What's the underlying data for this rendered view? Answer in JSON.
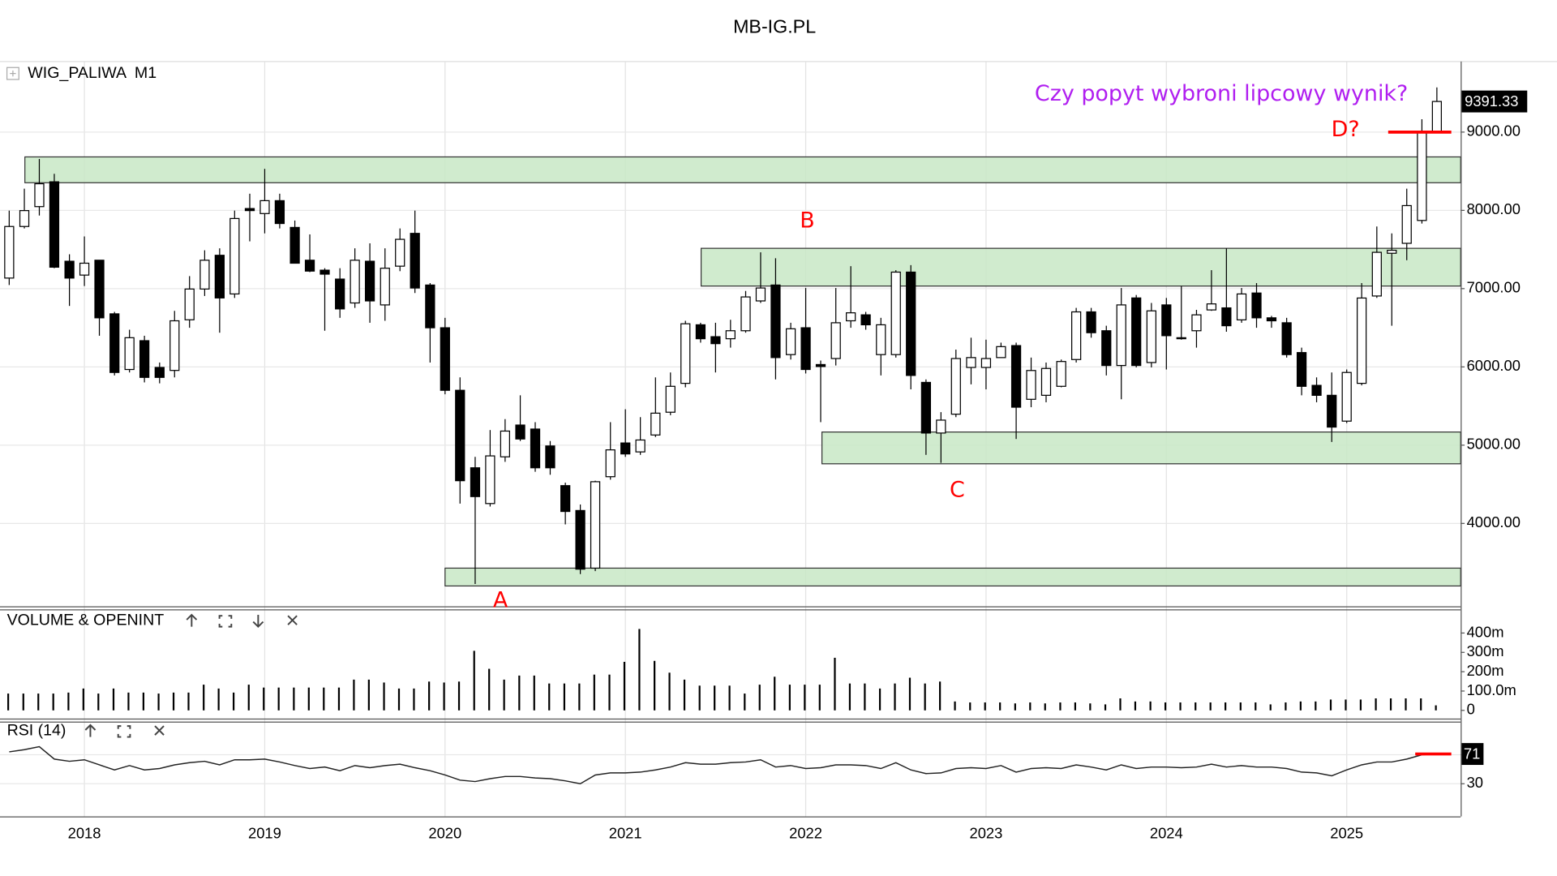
{
  "page_title": "MB-IG.PL",
  "chart_data": [
    {
      "type": "candlestick",
      "title": "WIG_PALIWA  M1",
      "x": [
        2017.583,
        2017.667,
        2017.75,
        2017.833,
        2017.917,
        2018,
        2018.083,
        2018.167,
        2018.25,
        2018.333,
        2018.417,
        2018.5,
        2018.583,
        2018.667,
        2018.75,
        2018.833,
        2018.917,
        2019,
        2019.083,
        2019.167,
        2019.25,
        2019.333,
        2019.417,
        2019.5,
        2019.583,
        2019.667,
        2019.75,
        2019.833,
        2019.917,
        2020,
        2020.083,
        2020.167,
        2020.25,
        2020.333,
        2020.417,
        2020.5,
        2020.583,
        2020.667,
        2020.75,
        2020.833,
        2020.917,
        2021,
        2021.083,
        2021.167,
        2021.25,
        2021.333,
        2021.417,
        2021.5,
        2021.583,
        2021.667,
        2021.75,
        2021.833,
        2021.917,
        2022,
        2022.083,
        2022.167,
        2022.25,
        2022.333,
        2022.417,
        2022.5,
        2022.583,
        2022.667,
        2022.75,
        2022.833,
        2022.917,
        2023,
        2023.083,
        2023.167,
        2023.25,
        2023.333,
        2023.417,
        2023.5,
        2023.583,
        2023.667,
        2023.75,
        2023.833,
        2023.917,
        2024,
        2024.083,
        2024.167,
        2024.25,
        2024.333,
        2024.417,
        2024.5,
        2024.583,
        2024.667,
        2024.75,
        2024.833,
        2024.917,
        2025,
        2025.083,
        2025.167,
        2025.25,
        2025.333,
        2025.417,
        2025.5
      ],
      "open": [
        7135,
        7794,
        8048,
        8365,
        7350,
        7173,
        7363,
        6678,
        5967,
        6335,
        5993,
        5955,
        6602,
        6995,
        7426,
        6932,
        8023,
        7959,
        8124,
        7782,
        7363,
        7236,
        7122,
        6817,
        7350,
        6792,
        7287,
        7706,
        7046,
        6500,
        5701,
        4711,
        4254,
        4851,
        5257,
        5206,
        4990,
        4483,
        4165,
        3429,
        4597,
        5028,
        4914,
        5130,
        5421,
        5790,
        6538,
        6386,
        6360,
        6462,
        6843,
        7046,
        6157,
        6500,
        6030,
        6107,
        6589,
        6665,
        6157,
        6157,
        7211,
        5802,
        5155,
        5396,
        5993,
        5993,
        6119,
        6272,
        5586,
        5637,
        5752,
        6094,
        6703,
        6462,
        6018,
        6881,
        6056,
        6792,
        6373,
        6462,
        6728,
        6754,
        6601,
        6944,
        6627,
        6564,
        6183,
        5764,
        5637,
        5307,
        5790,
        6906,
        7452,
        7579,
        7871,
        9000
      ],
      "high": [
        7997,
        8277,
        8657,
        8467,
        7439,
        7667,
        7363,
        6703,
        6475,
        6398,
        6056,
        6716,
        7160,
        7490,
        7515,
        7997,
        8213,
        8530,
        8213,
        7870,
        7693,
        7261,
        7261,
        7515,
        7579,
        7515,
        7769,
        7997,
        7071,
        6627,
        5866,
        4850,
        5193,
        5333,
        5637,
        5294,
        5053,
        4521,
        4242,
        4546,
        5294,
        5459,
        5358,
        5866,
        5929,
        6589,
        6564,
        6564,
        6602,
        6970,
        7464,
        7388,
        6564,
        7008,
        6081,
        7008,
        7287,
        6703,
        6627,
        7236,
        7300,
        5840,
        5422,
        6221,
        6373,
        6348,
        6310,
        6310,
        6119,
        6056,
        6094,
        6754,
        6754,
        6526,
        7008,
        6919,
        6817,
        6881,
        7033,
        6729,
        7236,
        7515,
        7008,
        7071,
        6652,
        6627,
        6246,
        5866,
        5929,
        5967,
        7071,
        7794,
        7706,
        8277,
        9165,
        9571
      ],
      "low": [
        7046,
        7769,
        7934,
        7261,
        6779,
        7033,
        6398,
        5891,
        5929,
        5802,
        5790,
        5866,
        6500,
        6906,
        6437,
        6881,
        7604,
        7706,
        7769,
        7325,
        7211,
        6462,
        6627,
        6754,
        6564,
        6589,
        7223,
        6944,
        6056,
        5650,
        4254,
        3226,
        4216,
        4787,
        5053,
        4660,
        4622,
        3988,
        3353,
        3391,
        4559,
        4850,
        4876,
        5104,
        5383,
        5739,
        6310,
        5929,
        6246,
        6437,
        6817,
        5840,
        6094,
        5916,
        5294,
        6018,
        6500,
        6475,
        5891,
        6119,
        5713,
        4876,
        4774,
        5358,
        5777,
        5713,
        6119,
        5079,
        5485,
        5548,
        5739,
        6056,
        6373,
        5891,
        5586,
        5993,
        5993,
        5967,
        6348,
        6246,
        6716,
        6449,
        6564,
        6500,
        6500,
        6119,
        5637,
        5548,
        5041,
        5282,
        5764,
        6881,
        6526,
        7363,
        7832,
        9000
      ],
      "close": [
        7794,
        7997,
        8340,
        7274,
        7135,
        7325,
        6627,
        5929,
        6373,
        5866,
        5866,
        6589,
        6995,
        7363,
        6881,
        7896,
        7997,
        8124,
        7832,
        7325,
        7224,
        7185,
        6741,
        7363,
        6843,
        7261,
        7630,
        7008,
        6500,
        5701,
        4546,
        4343,
        4863,
        5180,
        5079,
        4711,
        4711,
        4153,
        3416,
        4533,
        4940,
        4888,
        5066,
        5409,
        5752,
        6551,
        6360,
        6297,
        6462,
        6894,
        7008,
        6119,
        6487,
        5967,
        6005,
        6564,
        6691,
        6538,
        6538,
        7211,
        5891,
        5155,
        5320,
        6107,
        6119,
        6107,
        6259,
        5485,
        5954,
        5980,
        6069,
        6703,
        6437,
        6018,
        6792,
        6018,
        6716,
        6399,
        6360,
        6665,
        6805,
        6526,
        6932,
        6627,
        6589,
        6157,
        5752,
        5637,
        5231,
        5929,
        6880,
        7464,
        7490,
        8061,
        9000,
        9391.33
      ],
      "up_color": "#ffffff",
      "down_color": "#000000",
      "outline_color": "#000000",
      "xlim": [
        2017.532,
        2025.632
      ],
      "xticks": [
        2018,
        2019,
        2020,
        2021,
        2022,
        2023,
        2024,
        2025
      ],
      "ylim": [
        2947,
        9901
      ],
      "yticks": [
        {
          "value": 4000,
          "label": "4000.00"
        },
        {
          "value": 5000,
          "label": "5000.00"
        },
        {
          "value": 6000,
          "label": "6000.00"
        },
        {
          "value": 7000,
          "label": "7000.00"
        },
        {
          "value": 8000,
          "label": "8000.00"
        },
        {
          "value": 9000,
          "label": "9000.00"
        }
      ],
      "grid": true,
      "zone_color": "#c8e8c6",
      "zones": [
        {
          "x_start": 2017.67,
          "y": [
            8353,
            8683
          ]
        },
        {
          "x_start": 2021.42,
          "y": [
            7033,
            7515
          ]
        },
        {
          "x_start": 2022.09,
          "y": [
            4762,
            5168
          ]
        },
        {
          "x_start": 2020.0,
          "y": [
            3201,
            3429
          ]
        }
      ],
      "hlines": [
        {
          "value": 9000,
          "x_start": 2025.23,
          "x_end": 2025.58,
          "color": "#ff0000"
        }
      ],
      "annotations": [
        {
          "text": "A",
          "color": "#ff0000"
        },
        {
          "text": "B",
          "color": "#ff0000"
        },
        {
          "text": "C",
          "color": "#ff0000"
        },
        {
          "text": "D?",
          "color": "#ff0000"
        },
        {
          "text": "Czy popyt wybroni lipcowy wynik?",
          "color": "#b01ef0"
        }
      ]
    },
    {
      "type": "bar",
      "title": "VOLUME & OPENINT",
      "color": "#000000",
      "values": [
        87,
        87,
        87,
        87,
        92,
        113,
        87,
        113,
        92,
        92,
        87,
        92,
        92,
        133,
        113,
        92,
        133,
        118,
        118,
        118,
        118,
        118,
        118,
        159,
        159,
        144,
        113,
        113,
        149,
        144,
        149,
        308,
        215,
        159,
        180,
        180,
        139,
        139,
        139,
        185,
        185,
        251,
        421,
        256,
        195,
        159,
        128,
        128,
        128,
        87,
        133,
        174,
        133,
        133,
        133,
        272,
        139,
        139,
        113,
        139,
        169,
        139,
        149,
        46,
        41,
        41,
        41,
        36,
        41,
        36,
        41,
        41,
        36,
        31,
        62,
        46,
        46,
        41,
        41,
        41,
        41,
        41,
        41,
        41,
        31,
        41,
        46,
        46,
        56,
        56,
        56,
        62,
        62,
        62,
        62,
        26
      ],
      "ylim": [
        -45,
        520
      ],
      "yticks": [
        0,
        {
          "value": 100,
          "label": "100.0m"
        },
        {
          "value": 200,
          "label": "200m"
        },
        {
          "value": 300,
          "label": "300m"
        },
        {
          "value": 400,
          "label": "400m"
        }
      ]
    },
    {
      "type": "line",
      "title": "RSI (14)",
      "color": "#222222",
      "values": [
        74,
        77,
        81,
        64,
        61,
        63,
        56,
        49,
        55,
        49,
        51,
        56,
        59,
        61,
        56,
        63,
        63,
        64,
        60,
        55,
        51,
        53,
        48,
        55,
        52,
        55,
        57,
        52,
        48,
        42,
        35,
        33,
        37,
        40,
        40,
        38,
        37,
        34,
        30,
        42,
        45,
        45,
        46,
        49,
        53,
        59,
        57,
        57,
        59,
        60,
        63,
        53,
        55,
        51,
        52,
        56,
        56,
        55,
        51,
        59,
        49,
        44,
        45,
        51,
        52,
        51,
        55,
        46,
        51,
        52,
        51,
        56,
        53,
        49,
        56,
        51,
        53,
        53,
        52,
        53,
        57,
        53,
        55,
        53,
        53,
        51,
        46,
        45,
        41,
        49,
        56,
        60,
        60,
        64,
        70,
        71
      ],
      "ylim": [
        -15,
        115
      ],
      "yticks": [
        30,
        70
      ],
      "grid": true,
      "hlines": [
        {
          "value": 71,
          "x_start": 2025.38,
          "x_end": 2025.58,
          "color": "#ff0000"
        }
      ]
    }
  ]
}
